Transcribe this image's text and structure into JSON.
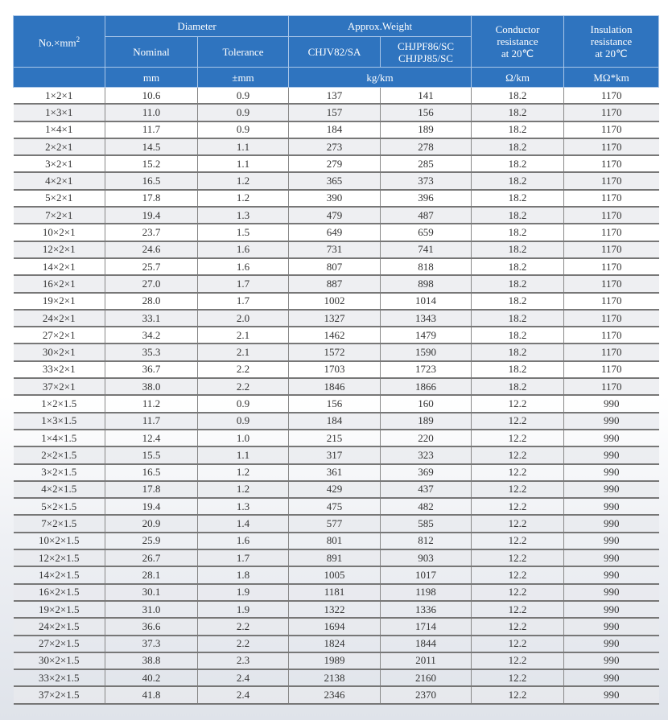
{
  "header": {
    "size": "No.×mm",
    "size_sup": "2",
    "diameter": "Diameter",
    "nominal": "Nominal",
    "tolerance": "Tolerance",
    "weight": "Approx.Weight",
    "w1": "CHJV82/SA",
    "w2a": "CHJPF86/SC",
    "w2b": "CHJPJ85/SC",
    "cond": [
      "Conductor",
      "resistance",
      "at 20℃"
    ],
    "ins": [
      "Insulation",
      "resistance",
      "at 20℃"
    ],
    "units": {
      "nominal": "mm",
      "tolerance": "±mm",
      "weight": "kg/km",
      "cond": "Ω/km",
      "ins": "MΩ*km"
    }
  },
  "rows": [
    [
      "1×2×1",
      "10.6",
      "0.9",
      "137",
      "141",
      "18.2",
      "1170"
    ],
    [
      "1×3×1",
      "11.0",
      "0.9",
      "157",
      "156",
      "18.2",
      "1170"
    ],
    [
      "1×4×1",
      "11.7",
      "0.9",
      "184",
      "189",
      "18.2",
      "1170"
    ],
    [
      "2×2×1",
      "14.5",
      "1.1",
      "273",
      "278",
      "18.2",
      "1170"
    ],
    [
      "3×2×1",
      "15.2",
      "1.1",
      "279",
      "285",
      "18.2",
      "1170"
    ],
    [
      "4×2×1",
      "16.5",
      "1.2",
      "365",
      "373",
      "18.2",
      "1170"
    ],
    [
      "5×2×1",
      "17.8",
      "1.2",
      "390",
      "396",
      "18.2",
      "1170"
    ],
    [
      "7×2×1",
      "19.4",
      "1.3",
      "479",
      "487",
      "18.2",
      "1170"
    ],
    [
      "10×2×1",
      "23.7",
      "1.5",
      "649",
      "659",
      "18.2",
      "1170"
    ],
    [
      "12×2×1",
      "24.6",
      "1.6",
      "731",
      "741",
      "18.2",
      "1170"
    ],
    [
      "14×2×1",
      "25.7",
      "1.6",
      "807",
      "818",
      "18.2",
      "1170"
    ],
    [
      "16×2×1",
      "27.0",
      "1.7",
      "887",
      "898",
      "18.2",
      "1170"
    ],
    [
      "19×2×1",
      "28.0",
      "1.7",
      "1002",
      "1014",
      "18.2",
      "1170"
    ],
    [
      "24×2×1",
      "33.1",
      "2.0",
      "1327",
      "1343",
      "18.2",
      "1170"
    ],
    [
      "27×2×1",
      "34.2",
      "2.1",
      "1462",
      "1479",
      "18.2",
      "1170"
    ],
    [
      "30×2×1",
      "35.3",
      "2.1",
      "1572",
      "1590",
      "18.2",
      "1170"
    ],
    [
      "33×2×1",
      "36.7",
      "2.2",
      "1703",
      "1723",
      "18.2",
      "1170"
    ],
    [
      "37×2×1",
      "38.0",
      "2.2",
      "1846",
      "1866",
      "18.2",
      "1170"
    ],
    [
      "1×2×1.5",
      "11.2",
      "0.9",
      "156",
      "160",
      "12.2",
      "990"
    ],
    [
      "1×3×1.5",
      "11.7",
      "0.9",
      "184",
      "189",
      "12.2",
      "990"
    ],
    [
      "1×4×1.5",
      "12.4",
      "1.0",
      "215",
      "220",
      "12.2",
      "990"
    ],
    [
      "2×2×1.5",
      "15.5",
      "1.1",
      "317",
      "323",
      "12.2",
      "990"
    ],
    [
      "3×2×1.5",
      "16.5",
      "1.2",
      "361",
      "369",
      "12.2",
      "990"
    ],
    [
      "4×2×1.5",
      "17.8",
      "1.2",
      "429",
      "437",
      "12.2",
      "990"
    ],
    [
      "5×2×1.5",
      "19.4",
      "1.3",
      "475",
      "482",
      "12.2",
      "990"
    ],
    [
      "7×2×1.5",
      "20.9",
      "1.4",
      "577",
      "585",
      "12.2",
      "990"
    ],
    [
      "10×2×1.5",
      "25.9",
      "1.6",
      "801",
      "812",
      "12.2",
      "990"
    ],
    [
      "12×2×1.5",
      "26.7",
      "1.7",
      "891",
      "903",
      "12.2",
      "990"
    ],
    [
      "14×2×1.5",
      "28.1",
      "1.8",
      "1005",
      "1017",
      "12.2",
      "990"
    ],
    [
      "16×2×1.5",
      "30.1",
      "1.9",
      "1181",
      "1198",
      "12.2",
      "990"
    ],
    [
      "19×2×1.5",
      "31.0",
      "1.9",
      "1322",
      "1336",
      "12.2",
      "990"
    ],
    [
      "24×2×1.5",
      "36.6",
      "2.2",
      "1694",
      "1714",
      "12.2",
      "990"
    ],
    [
      "27×2×1.5",
      "37.3",
      "2.2",
      "1824",
      "1844",
      "12.2",
      "990"
    ],
    [
      "30×2×1.5",
      "38.8",
      "2.3",
      "1989",
      "2011",
      "12.2",
      "990"
    ],
    [
      "33×2×1.5",
      "40.2",
      "2.4",
      "2138",
      "2160",
      "12.2",
      "990"
    ],
    [
      "37×2×1.5",
      "41.8",
      "2.4",
      "2346",
      "2370",
      "12.2",
      "990"
    ]
  ],
  "colors": {
    "header": "#2f74bf",
    "alt_row": "#e8eaee"
  }
}
